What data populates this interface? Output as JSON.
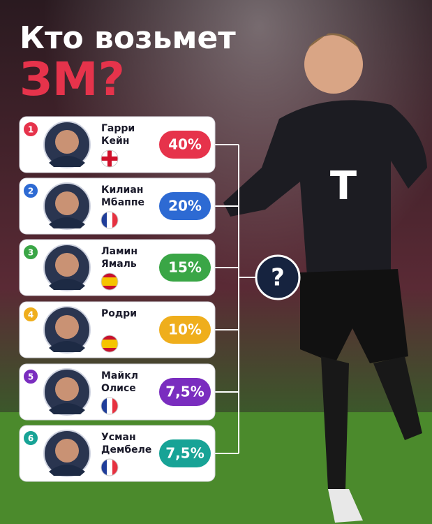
{
  "header": {
    "title_line1": "Кто возьмет",
    "title_line2": "ЗМ?"
  },
  "players": [
    {
      "rank": "1",
      "first": "Гарри",
      "last": "Кейн",
      "percent": "40%",
      "color": "#e6334b"
    },
    {
      "rank": "2",
      "first": "Килиан",
      "last": "Мбаппе",
      "percent": "20%",
      "color": "#2d6ad3"
    },
    {
      "rank": "3",
      "first": "Ламин",
      "last": "Ямаль",
      "percent": "15%",
      "color": "#3aa646"
    },
    {
      "rank": "4",
      "first": "Родри",
      "last": "",
      "percent": "10%",
      "color": "#efae1c"
    },
    {
      "rank": "5",
      "first": "Майкл",
      "last": "Олисе",
      "percent": "7,5%",
      "color": "#7a2dbf"
    },
    {
      "rank": "6",
      "first": "Усман",
      "last": "Дембеле",
      "percent": "7,5%",
      "color": "#17a396"
    }
  ],
  "center_mark": "?"
}
